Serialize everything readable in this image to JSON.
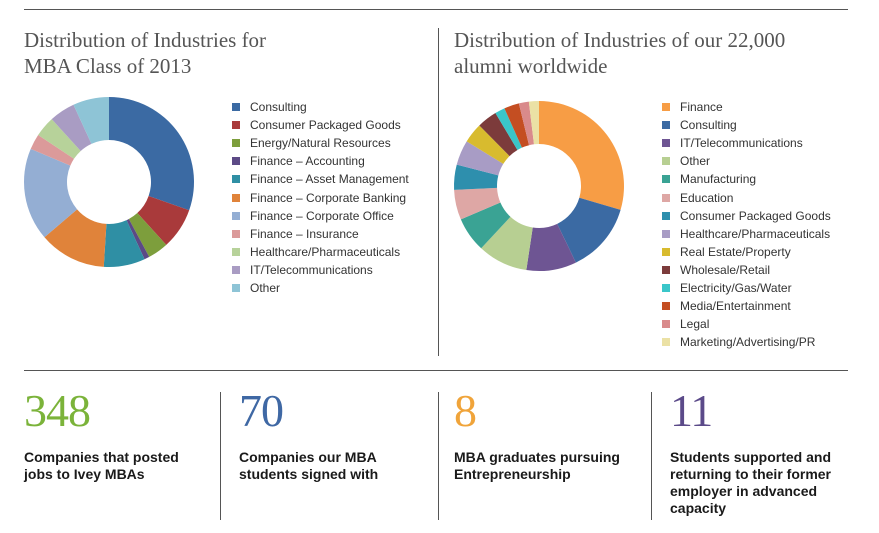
{
  "colors": {
    "consulting": "#3b6aa3",
    "cpg": "#a93a3b",
    "energy": "#7d9e3c",
    "fin_accounting": "#5c4a86",
    "fin_asset": "#2f8fa4",
    "fin_corp_banking": "#e0833a",
    "fin_corp_office": "#94aed3",
    "fin_insurance": "#db9a9a",
    "healthcare": "#b7d29a",
    "it": "#a99cc3",
    "other_light": "#8ec4d6",
    "finance": "#f79d45",
    "it_purple": "#6e5593",
    "other_green": "#b7cf92",
    "manufacturing": "#3aa394",
    "education": "#dea7a5",
    "cpg_teal": "#2e8fad",
    "healthcare_lav": "#a89cc5",
    "realestate": "#d8bb2e",
    "wholesale": "#7c3b3b",
    "electricity": "#3ac6c9",
    "media": "#c44e22",
    "legal": "#d98a8b",
    "marketing": "#ebe1a5",
    "stat1": "#7bb33a",
    "stat2": "#3f68a4",
    "stat3": "#f0a43a",
    "stat4": "#5b4a89"
  },
  "chart_data": [
    {
      "type": "pie",
      "title": "Distribution of Industries for MBA Class of 2013",
      "donut": true,
      "legend_position": "right",
      "series": [
        {
          "name": "Consulting",
          "value": 31,
          "color": "#3b6aa3"
        },
        {
          "name": "Consumer Packaged Goods",
          "value": 8,
          "color": "#a93a3b"
        },
        {
          "name": "Energy/Natural Resources",
          "value": 4,
          "color": "#7d9e3c"
        },
        {
          "name": "Finance – Accounting",
          "value": 1,
          "color": "#5c4a86"
        },
        {
          "name": "Finance – Asset Management",
          "value": 8,
          "color": "#2f8fa4"
        },
        {
          "name": "Finance – Corporate Banking",
          "value": 13,
          "color": "#e0833a"
        },
        {
          "name": "Finance – Corporate Office",
          "value": 18,
          "color": "#94aed3"
        },
        {
          "name": "Finance – Insurance",
          "value": 3,
          "color": "#db9a9a"
        },
        {
          "name": "Healthcare/Pharmaceuticals",
          "value": 4,
          "color": "#b7d29a"
        },
        {
          "name": "IT/Telecommunications",
          "value": 5,
          "color": "#a99cc3"
        },
        {
          "name": "Other",
          "value": 7,
          "color": "#8ec4d6"
        }
      ]
    },
    {
      "type": "pie",
      "title": "Distribution of Industries of our 22,000 alumni worldwide",
      "donut": true,
      "legend_position": "right",
      "series": [
        {
          "name": "Finance",
          "value": 31,
          "color": "#f79d45"
        },
        {
          "name": "Consulting",
          "value": 14,
          "color": "#3b6aa3"
        },
        {
          "name": "IT/Telecommunications",
          "value": 10,
          "color": "#6e5593"
        },
        {
          "name": "Other",
          "value": 10,
          "color": "#b7cf92"
        },
        {
          "name": "Manufacturing",
          "value": 7,
          "color": "#3aa394"
        },
        {
          "name": "Education",
          "value": 6,
          "color": "#dea7a5"
        },
        {
          "name": "Consumer Packaged Goods",
          "value": 5,
          "color": "#2e8fad"
        },
        {
          "name": "Healthcare/Pharmaceuticals",
          "value": 5,
          "color": "#a89cc5"
        },
        {
          "name": "Real Estate/Property",
          "value": 4,
          "color": "#d8bb2e"
        },
        {
          "name": "Wholesale/Retail",
          "value": 4,
          "color": "#7c3b3b"
        },
        {
          "name": "Electricity/Gas/Water",
          "value": 2,
          "color": "#3ac6c9"
        },
        {
          "name": "Media/Entertainment",
          "value": 3,
          "color": "#c44e22"
        },
        {
          "name": "Legal",
          "value": 2,
          "color": "#d98a8b"
        },
        {
          "name": "Marketing/Advertising/PR",
          "value": 2,
          "color": "#ebe1a5"
        }
      ]
    }
  ],
  "titles": {
    "left_line1": "Distribution of Industries for",
    "left_line2": "MBA Class of 2013",
    "right_line1": "Distribution of Industries of our 22,000",
    "right_line2": "alumni worldwide"
  },
  "stats": [
    {
      "number": "348",
      "line1": "Companies that posted",
      "line2": "jobs to Ivey MBAs",
      "line3": "",
      "line4": ""
    },
    {
      "number": "70",
      "line1": "Companies our MBA",
      "line2": "students signed with",
      "line3": "",
      "line4": ""
    },
    {
      "number": "8",
      "line1": "MBA graduates pursuing",
      "line2": "Entrepreneurship",
      "line3": "",
      "line4": ""
    },
    {
      "number": "11",
      "line1": "Students supported and",
      "line2": "returning to their former",
      "line3": "employer in advanced",
      "line4": "capacity"
    }
  ]
}
